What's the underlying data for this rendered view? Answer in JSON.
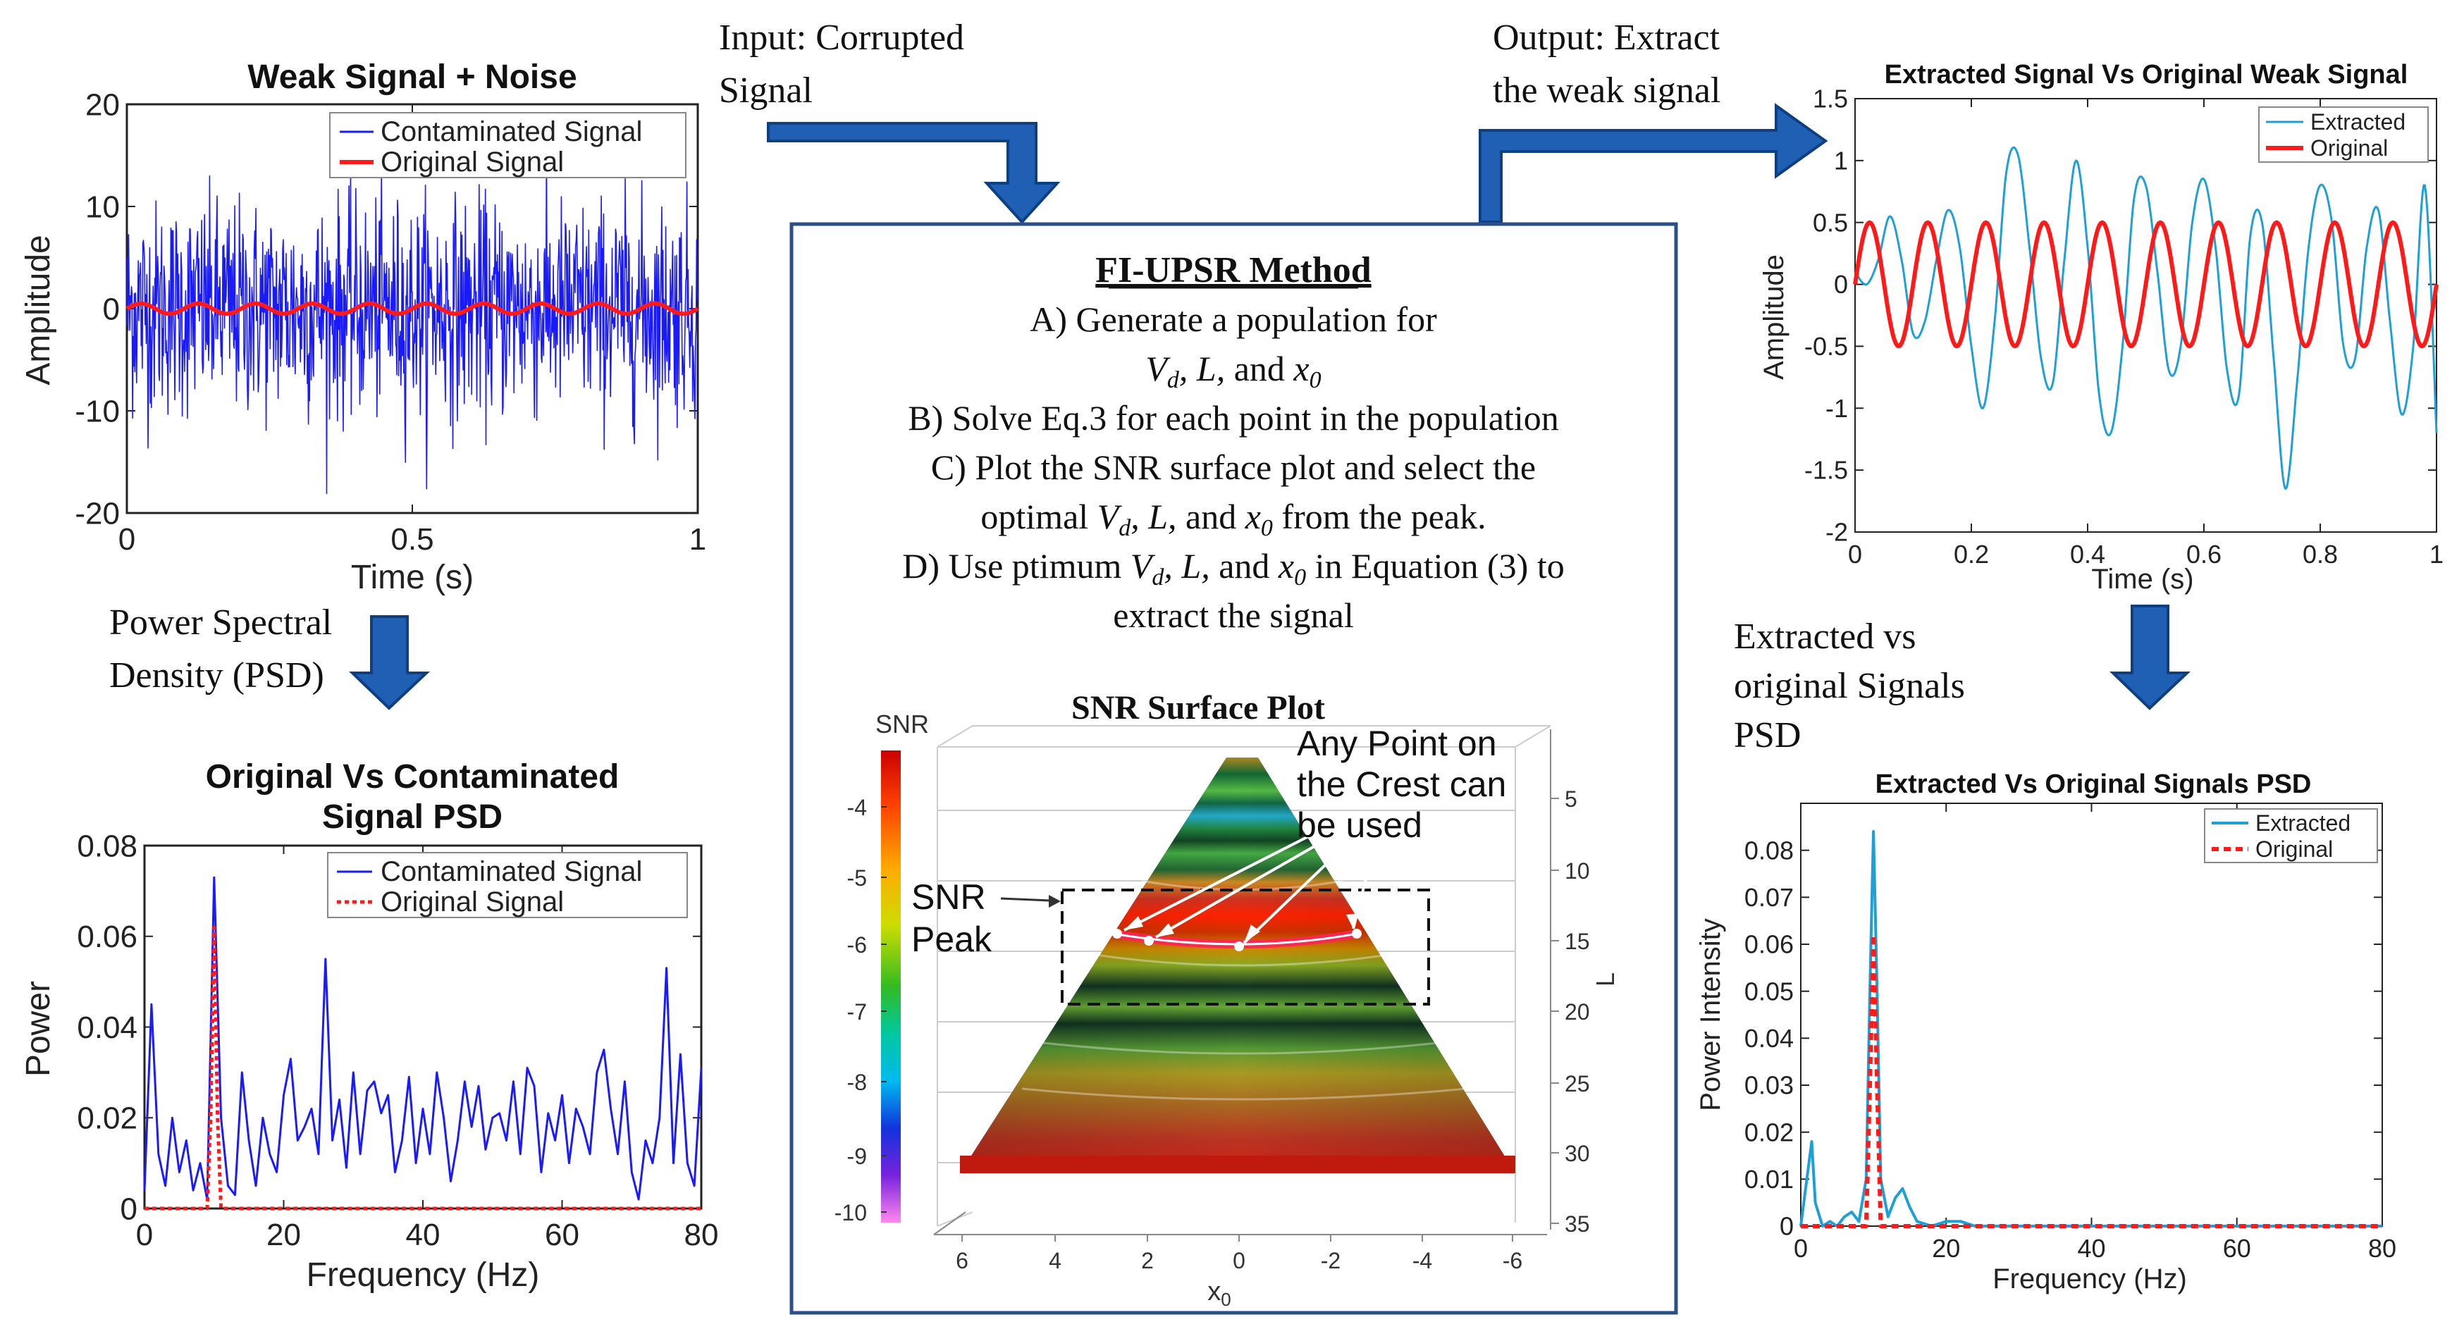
{
  "flow": {
    "input_label_line1": "Input: Corrupted",
    "input_label_line2": "Signal",
    "output_label_line1": "Output: Extract",
    "output_label_line2": "the weak signal",
    "psd_label_line1": "Power Spectral",
    "psd_label_line2": "Density (PSD)",
    "extracted_psd_label_line1": "Extracted vs",
    "extracted_psd_label_line2": "original Signals",
    "extracted_psd_label_line3": "PSD"
  },
  "method": {
    "title": "FI-UPSR Method",
    "step_a_line1": "A) Generate a population for",
    "step_a_line2_vd": "V",
    "step_a_line2_vd_sub": "d",
    "step_a_line2_l": ", L,",
    "step_a_line2_and": " and ",
    "step_a_line2_x": "x",
    "step_a_line2_x_sub": "0",
    "step_b": "B) Solve Eq.3 for each point in the population",
    "step_c_line1": "C) Plot the SNR surface plot and select the",
    "step_c_line2_pre": "optimal ",
    "step_c_line2_vars": "V",
    "step_c_line2_vars_sub": "d",
    "step_c_line2_l": ", L,",
    "step_c_line2_and": " and ",
    "step_c_line2_x": "x",
    "step_c_line2_x_sub": "0",
    "step_c_line2_post": " from the peak.",
    "step_d_line1_pre": "D) Use ptimum  ",
    "step_d_line1_v": "V",
    "step_d_line1_v_sub": "d",
    "step_d_line1_l": ", L,",
    "step_d_line1_and": " and ",
    "step_d_line1_x": "x",
    "step_d_line1_x_sub": "0",
    "step_d_line1_post": " in Equation (3) to",
    "step_d_line2": "extract the signal"
  },
  "surface": {
    "title": "SNR Surface Plot",
    "colorbar_label": "SNR",
    "colorbar_ticks": [
      "-4",
      "-5",
      "-6",
      "-7",
      "-8",
      "-9",
      "-10"
    ],
    "y_ticks": [
      "5",
      "10",
      "15",
      "20",
      "25",
      "30",
      "35"
    ],
    "y_label": "L",
    "x_ticks": [
      "6",
      "4",
      "2",
      "0",
      "-2",
      "-4",
      "-6"
    ],
    "x_label": "x",
    "x_label_sub": "0",
    "ann_crest_line1": "Any Point on",
    "ann_crest_line2": "the Crest can",
    "ann_crest_line3": "be used",
    "ann_peak_line1": "SNR",
    "ann_peak_line2": "Peak"
  },
  "colors": {
    "arrow": "#1f5fb4",
    "blue_signal": "#1a1aff",
    "red_signal": "#ff1a1a",
    "extracted": "#1f9fd8",
    "box_border": "#2a4f8a"
  },
  "chart_data": [
    {
      "id": "weak_signal_noise",
      "type": "line",
      "title": "Weak Signal + Noise",
      "xlabel": "Time (s)",
      "ylabel": "Amplitude",
      "xlim": [
        0,
        1
      ],
      "ylim": [
        -20,
        20
      ],
      "x_ticks": [
        "0",
        "0.5",
        "1"
      ],
      "y_ticks": [
        "20",
        "10",
        "0",
        "-10",
        "-20"
      ],
      "legend": [
        "Contaminated Signal",
        "Original Signal"
      ],
      "series": [
        {
          "name": "Contaminated Signal",
          "description": "random noise, std approx 5, range approx -20 to 20"
        },
        {
          "name": "Original Signal",
          "amplitude": 0.5,
          "frequency_hz": 10
        }
      ]
    },
    {
      "id": "original_vs_contaminated_psd",
      "type": "line",
      "title_line1": "Original Vs Contaminated",
      "title_line2": "Signal PSD",
      "xlabel": "Frequency (Hz)",
      "ylabel": "Power",
      "xlim": [
        0,
        80
      ],
      "ylim": [
        0,
        0.08
      ],
      "x_ticks": [
        "0",
        "20",
        "40",
        "60",
        "80"
      ],
      "y_ticks": [
        "0.08",
        "0.06",
        "0.04",
        "0.02",
        "0"
      ],
      "legend": [
        "Contaminated Signal",
        "Original Signal"
      ],
      "series": [
        {
          "name": "Contaminated Signal",
          "x": [
            0,
            1,
            2,
            3,
            4,
            5,
            6,
            7,
            8,
            9,
            10,
            11,
            12,
            13,
            14,
            15,
            16,
            17,
            18,
            19,
            20,
            21,
            22,
            23,
            24,
            25,
            26,
            27,
            28,
            29,
            30,
            31,
            32,
            33,
            34,
            35,
            36,
            37,
            38,
            39,
            40,
            41,
            42,
            43,
            44,
            45,
            46,
            47,
            48,
            49,
            50,
            51,
            52,
            53,
            54,
            55,
            56,
            57,
            58,
            59,
            60,
            61,
            62,
            63,
            64,
            65,
            66,
            67,
            68,
            69,
            70,
            71,
            72,
            73,
            74,
            75,
            76,
            77,
            78,
            79,
            80
          ],
          "values": [
            0.004,
            0.045,
            0.012,
            0.005,
            0.02,
            0.008,
            0.015,
            0.004,
            0.01,
            0.002,
            0.073,
            0.02,
            0.005,
            0.003,
            0.03,
            0.015,
            0.005,
            0.02,
            0.012,
            0.008,
            0.025,
            0.033,
            0.015,
            0.018,
            0.022,
            0.012,
            0.055,
            0.015,
            0.024,
            0.009,
            0.03,
            0.012,
            0.026,
            0.028,
            0.021,
            0.025,
            0.008,
            0.015,
            0.029,
            0.01,
            0.022,
            0.012,
            0.03,
            0.02,
            0.006,
            0.015,
            0.028,
            0.018,
            0.027,
            0.013,
            0.02,
            0.021,
            0.015,
            0.028,
            0.012,
            0.031,
            0.027,
            0.008,
            0.021,
            0.015,
            0.025,
            0.01,
            0.022,
            0.018,
            0.012,
            0.03,
            0.035,
            0.022,
            0.012,
            0.028,
            0.008,
            0.002,
            0.015,
            0.01,
            0.02,
            0.053,
            0.01,
            0.034,
            0.01,
            0.005,
            0.031
          ]
        },
        {
          "name": "Original Signal",
          "x": [
            0,
            9,
            9.5,
            10,
            10.5,
            11,
            80
          ],
          "values": [
            0,
            0,
            0.02,
            0.062,
            0.02,
            0,
            0
          ]
        }
      ]
    },
    {
      "id": "extracted_vs_original",
      "type": "line",
      "title": "Extracted Signal Vs Original Weak Signal",
      "xlabel": "Time (s)",
      "ylabel": "Amplitude",
      "xlim": [
        0,
        1
      ],
      "ylim": [
        -2,
        1.5
      ],
      "x_ticks": [
        "0",
        "0.2",
        "0.4",
        "0.6",
        "0.8",
        "1"
      ],
      "y_ticks": [
        "1.5",
        "1",
        "0.5",
        "0",
        "-0.5",
        "-1",
        "-1.5",
        "-2"
      ],
      "legend": [
        "Extracted",
        "Original"
      ],
      "series": [
        {
          "name": "Extracted",
          "x": [
            0,
            0.02,
            0.04,
            0.06,
            0.08,
            0.1,
            0.12,
            0.14,
            0.16,
            0.18,
            0.2,
            0.22,
            0.24,
            0.26,
            0.28,
            0.3,
            0.32,
            0.34,
            0.36,
            0.38,
            0.4,
            0.42,
            0.44,
            0.46,
            0.48,
            0.5,
            0.52,
            0.54,
            0.56,
            0.58,
            0.6,
            0.62,
            0.64,
            0.66,
            0.68,
            0.7,
            0.72,
            0.74,
            0.76,
            0.78,
            0.8,
            0.82,
            0.84,
            0.86,
            0.88,
            0.9,
            0.92,
            0.94,
            0.96,
            0.98,
            1
          ],
          "values": [
            0.1,
            0,
            0.2,
            0.55,
            0.2,
            -0.4,
            -0.3,
            0.2,
            0.6,
            0.3,
            -0.5,
            -1.0,
            -0.3,
            0.9,
            1.05,
            0.3,
            -0.6,
            -0.8,
            0.2,
            1.0,
            0.3,
            -0.9,
            -1.2,
            -0.5,
            0.7,
            0.8,
            0.1,
            -0.7,
            -0.5,
            0.5,
            0.85,
            0.3,
            -0.7,
            -0.9,
            0.4,
            0.5,
            -0.6,
            -1.65,
            -0.8,
            0.3,
            0.8,
            0.5,
            -0.5,
            -0.6,
            0.3,
            0.6,
            -0.3,
            -1.05,
            -0.5,
            0.8,
            -1.2
          ]
        },
        {
          "name": "Original",
          "amplitude": 0.5,
          "frequency_hz": 10,
          "phase_note": "sine starting at 0 rising"
        }
      ]
    },
    {
      "id": "extracted_vs_original_psd",
      "type": "line",
      "title": "Extracted Vs Original Signals PSD",
      "xlabel": "Frequency (Hz)",
      "ylabel": "Power Intensity",
      "xlim": [
        0,
        80
      ],
      "ylim": [
        0,
        0.09
      ],
      "x_ticks": [
        "0",
        "20",
        "40",
        "60",
        "80"
      ],
      "y_ticks": [
        "0.08",
        "0.07",
        "0.06",
        "0.05",
        "0.04",
        "0.03",
        "0.02",
        "0.01",
        "0"
      ],
      "legend": [
        "Extracted",
        "Original"
      ],
      "series": [
        {
          "name": "Extracted",
          "x": [
            0,
            1,
            1.5,
            2,
            3,
            4,
            5,
            6,
            7,
            8,
            9,
            9.5,
            10,
            10.5,
            11,
            12,
            13,
            14,
            15,
            16,
            18,
            20,
            22,
            24,
            30,
            80
          ],
          "values": [
            0,
            0.012,
            0.018,
            0.005,
            0,
            0.001,
            0,
            0.002,
            0.003,
            0.001,
            0.01,
            0.05,
            0.084,
            0.05,
            0.01,
            0.002,
            0.006,
            0.008,
            0.004,
            0.001,
            0,
            0.001,
            0.001,
            0,
            0,
            0
          ]
        },
        {
          "name": "Original",
          "x": [
            0,
            9,
            9.5,
            10,
            10.5,
            11,
            80
          ],
          "values": [
            0,
            0,
            0.03,
            0.062,
            0.03,
            0,
            0
          ]
        }
      ]
    }
  ]
}
